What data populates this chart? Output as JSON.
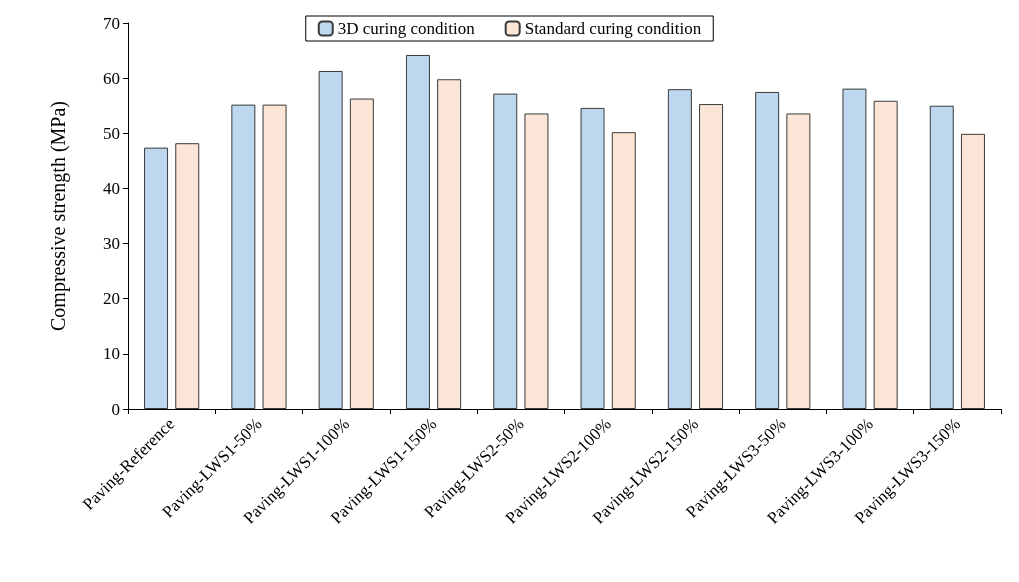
{
  "chart_data": {
    "type": "bar",
    "ylabel": "Compressive strength (MPa)",
    "categories": [
      "Paving-Reference",
      "Paving-LWS1-50%",
      "Paving-LWS1-100%",
      "Paving-LWS1-150%",
      "Paving-LWS2-50%",
      "Paving-LWS2-100%",
      "Paving-LWS2-150%",
      "Paving-LWS3-50%",
      "Paving-LWS3-100%",
      "Paving-LWS3-150%"
    ],
    "series": [
      {
        "name": "3D curing condition",
        "color": "#bdd7ee",
        "values": [
          47.4,
          55.2,
          61.3,
          64.2,
          57.2,
          54.6,
          58.0,
          57.5,
          58.1,
          55.0
        ]
      },
      {
        "name": "Standard curing condition",
        "color": "#fbe5d6",
        "values": [
          48.2,
          55.2,
          56.3,
          59.8,
          53.6,
          50.2,
          55.3,
          53.6,
          55.9,
          49.9
        ]
      }
    ],
    "ylim": [
      0,
      70
    ],
    "yticks": [
      0,
      10,
      20,
      30,
      40,
      50,
      60,
      70
    ],
    "grid": false,
    "legend": "top"
  }
}
